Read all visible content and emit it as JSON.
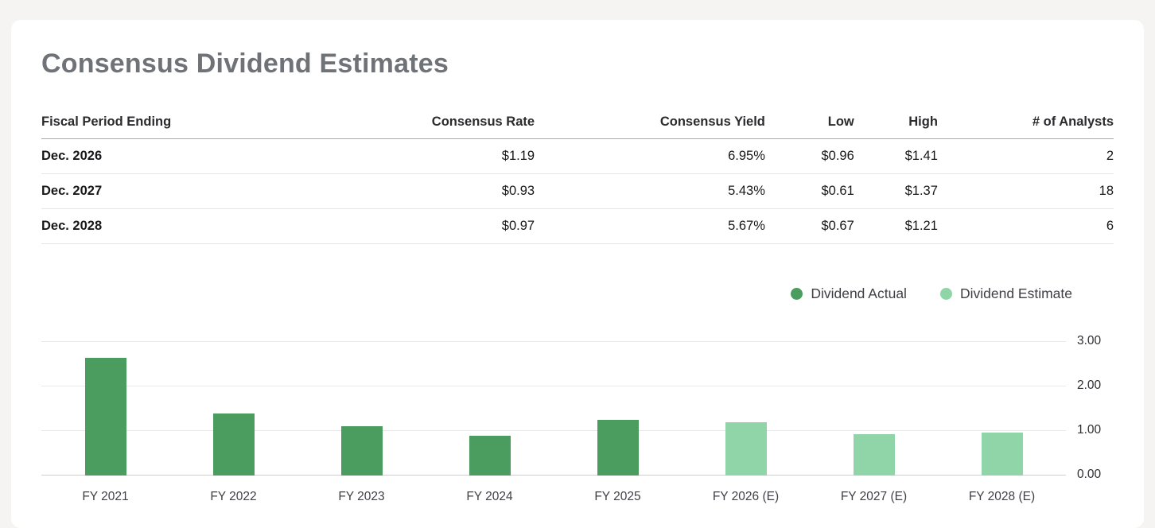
{
  "page": {
    "title": "Consensus Dividend Estimates"
  },
  "table": {
    "headers": [
      "Fiscal Period Ending",
      "Consensus Rate",
      "Consensus Yield",
      "Low",
      "High",
      "# of Analysts"
    ],
    "rows": [
      {
        "period": "Dec. 2026",
        "rate": "$1.19",
        "yield": "6.95%",
        "low": "$0.96",
        "high": "$1.41",
        "analysts": "2"
      },
      {
        "period": "Dec. 2027",
        "rate": "$0.93",
        "yield": "5.43%",
        "low": "$0.61",
        "high": "$1.37",
        "analysts": "18"
      },
      {
        "period": "Dec. 2028",
        "rate": "$0.97",
        "yield": "5.67%",
        "low": "$0.67",
        "high": "$1.21",
        "analysts": "6"
      }
    ]
  },
  "legend": [
    {
      "label": "Dividend Actual",
      "color": "#4a9d5f"
    },
    {
      "label": "Dividend Estimate",
      "color": "#90d5a8"
    }
  ],
  "chart_data": {
    "type": "bar",
    "title": "Consensus Dividend Estimates",
    "categories": [
      "FY 2021",
      "FY 2022",
      "FY 2023",
      "FY 2024",
      "FY 2025",
      "FY 2026 (E)",
      "FY 2027 (E)",
      "FY 2028 (E)"
    ],
    "series": [
      {
        "name": "Dividend Actual",
        "color": "#4a9d5f",
        "values": [
          2.65,
          1.4,
          1.1,
          0.9,
          1.25,
          null,
          null,
          null
        ]
      },
      {
        "name": "Dividend Estimate",
        "color": "#90d5a8",
        "values": [
          null,
          null,
          null,
          null,
          null,
          1.19,
          0.93,
          0.97
        ]
      }
    ],
    "xlabel": "",
    "ylabel": "",
    "ylim": [
      0,
      3
    ],
    "yticks": [
      "3.00",
      "2.00",
      "1.00",
      "0.00"
    ],
    "ytick_values": [
      3,
      2,
      1,
      0
    ],
    "grid": true,
    "legend_position": "top-right"
  }
}
